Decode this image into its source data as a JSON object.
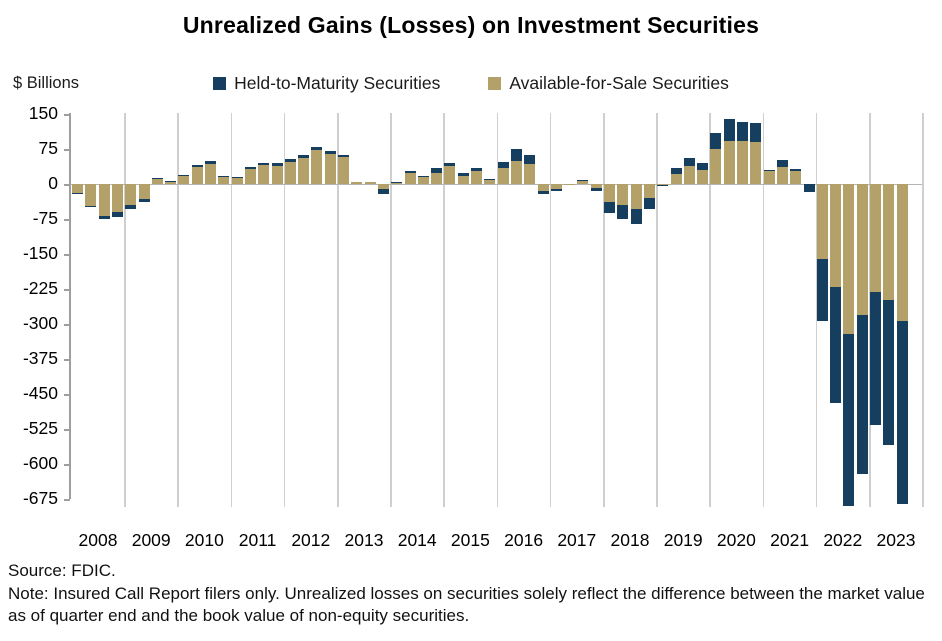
{
  "title": "Unrealized Gains (Losses) on Investment Securities",
  "y_axis": {
    "unit_label": "$ Billions",
    "ticks": [
      150,
      75,
      0,
      -75,
      -150,
      -225,
      -300,
      -375,
      -450,
      -525,
      -600,
      -675
    ]
  },
  "x_axis": {
    "years": [
      "2008",
      "2009",
      "2010",
      "2011",
      "2012",
      "2013",
      "2014",
      "2015",
      "2016",
      "2017",
      "2018",
      "2019",
      "2020",
      "2021",
      "2022",
      "2023"
    ]
  },
  "legend": [
    {
      "label": "Held-to-Maturity Securities",
      "color": "#163F5F"
    },
    {
      "label": "Available-for-Sale Securities",
      "color": "#B3A169"
    }
  ],
  "source": "Source: FDIC.",
  "note": "Note: Insured Call Report filers only. Unrealized losses on securities solely reflect the difference between the market value as of quarter end and the book value of non-equity securities.",
  "chart_data": {
    "type": "bar",
    "stacked": true,
    "title": "Unrealized Gains (Losses) on Investment Securities",
    "xlabel": "",
    "ylabel": "$ Billions",
    "ylim": [
      -700,
      150
    ],
    "grid": "vertical-year-boundaries",
    "legend_position": "top",
    "categories": [
      "2008 Q1",
      "2008 Q2",
      "2008 Q3",
      "2008 Q4",
      "2009 Q1",
      "2009 Q2",
      "2009 Q3",
      "2009 Q4",
      "2010 Q1",
      "2010 Q2",
      "2010 Q3",
      "2010 Q4",
      "2011 Q1",
      "2011 Q2",
      "2011 Q3",
      "2011 Q4",
      "2012 Q1",
      "2012 Q2",
      "2012 Q3",
      "2012 Q4",
      "2013 Q1",
      "2013 Q2",
      "2013 Q3",
      "2013 Q4",
      "2014 Q1",
      "2014 Q2",
      "2014 Q3",
      "2014 Q4",
      "2015 Q1",
      "2015 Q2",
      "2015 Q3",
      "2015 Q4",
      "2016 Q1",
      "2016 Q2",
      "2016 Q3",
      "2016 Q4",
      "2017 Q1",
      "2017 Q2",
      "2017 Q3",
      "2017 Q4",
      "2018 Q1",
      "2018 Q2",
      "2018 Q3",
      "2018 Q4",
      "2019 Q1",
      "2019 Q2",
      "2019 Q3",
      "2019 Q4",
      "2020 Q1",
      "2020 Q2",
      "2020 Q3",
      "2020 Q4",
      "2021 Q1",
      "2021 Q2",
      "2021 Q3",
      "2021 Q4",
      "2022 Q1",
      "2022 Q2",
      "2022 Q3",
      "2022 Q4",
      "2023 Q1",
      "2023 Q2",
      "2023 Q3"
    ],
    "series": [
      {
        "name": "Available-for-Sale Securities",
        "color": "#B3A169",
        "values": [
          -19,
          -47,
          -68,
          -61,
          -46,
          -32,
          11,
          5,
          18,
          36,
          43,
          17,
          15,
          32,
          40,
          38,
          47,
          56,
          72,
          64,
          57,
          4,
          4,
          -11,
          4,
          23,
          16,
          24,
          38,
          17,
          27,
          9,
          35,
          50,
          43,
          -16,
          -10,
          -3,
          7,
          -9,
          -38,
          -45,
          -54,
          -30,
          -2,
          21,
          39,
          31,
          75,
          92,
          93,
          90,
          29,
          37,
          28,
          -1,
          -161,
          -220,
          -321,
          -280,
          -232,
          -249,
          -294
        ]
      },
      {
        "name": "Held-to-Maturity Securities",
        "color": "#163F5F",
        "values": [
          -1,
          -2,
          -7,
          -9,
          -8,
          -7,
          1,
          1,
          2,
          5,
          6,
          1,
          1,
          4,
          6,
          6,
          6,
          6,
          8,
          7,
          6,
          0,
          0,
          -10,
          1,
          4,
          2,
          10,
          8,
          6,
          8,
          1,
          12,
          24,
          20,
          -6,
          -4,
          0,
          1,
          -6,
          -24,
          -29,
          -31,
          -23,
          -2,
          13,
          17,
          14,
          35,
          47,
          40,
          40,
          2,
          14,
          5,
          -16,
          -133,
          -250,
          -369,
          -341,
          -284,
          -310,
          -391
        ]
      }
    ]
  }
}
